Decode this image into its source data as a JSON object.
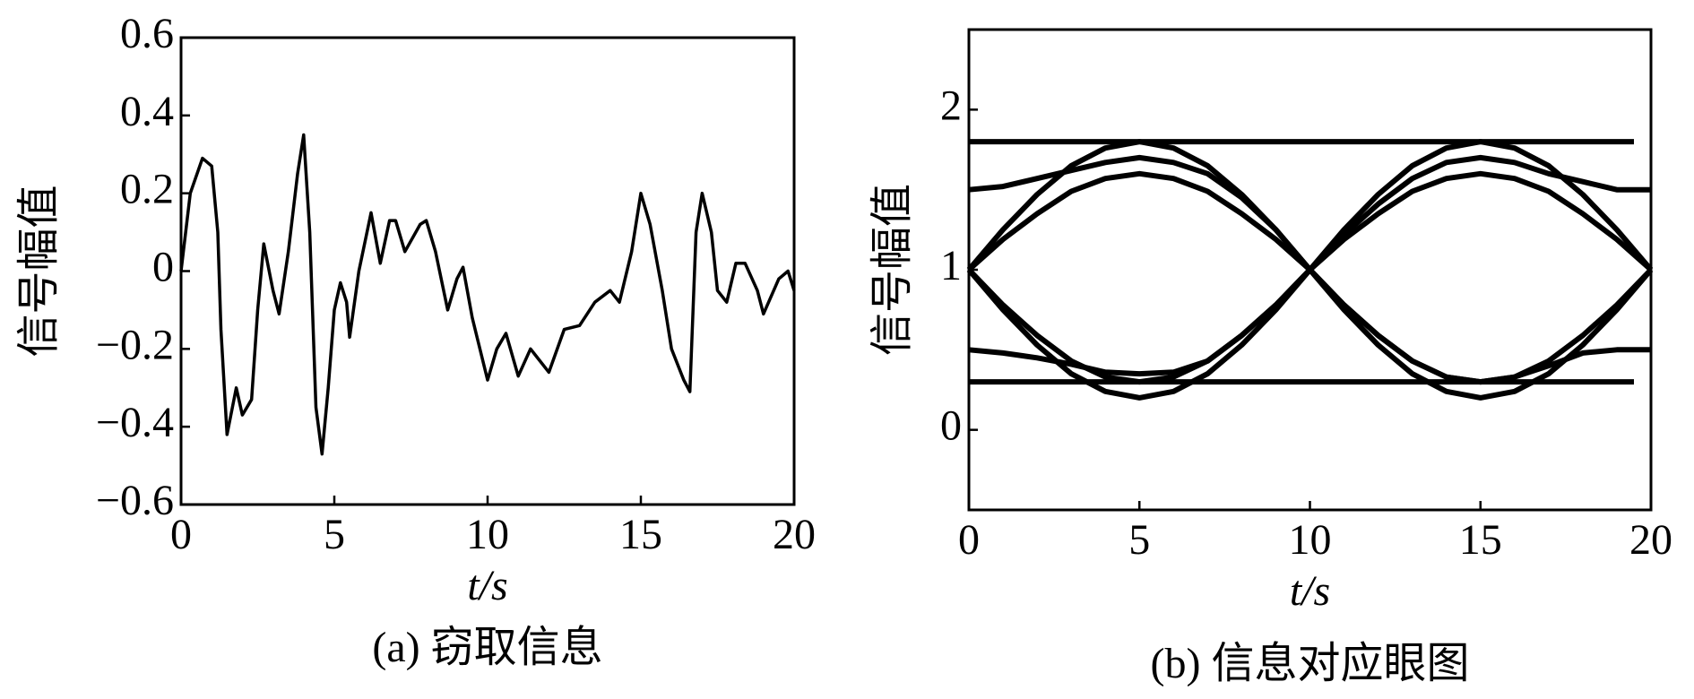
{
  "chart_data": [
    {
      "type": "line",
      "caption": "(a) 窃取信息",
      "xlabel": "t/s",
      "ylabel": "信号幅值",
      "xlim": [
        0,
        20
      ],
      "xticks": [
        0,
        5,
        10,
        15,
        20
      ],
      "ylim": [
        -0.6,
        0.6
      ],
      "yticks": [
        {
          "value": -0.6,
          "label": "−0.6"
        },
        {
          "value": -0.4,
          "label": "−0.4"
        },
        {
          "value": -0.2,
          "label": "−0.2"
        },
        0,
        0.2,
        0.4,
        0.6
      ],
      "series": [
        {
          "color": "#000000",
          "x": [
            0,
            0.3,
            0.7,
            1.0,
            1.2,
            1.3,
            1.5,
            1.8,
            2.0,
            2.3,
            2.5,
            2.7,
            3.0,
            3.2,
            3.5,
            3.8,
            4.0,
            4.2,
            4.4,
            4.6,
            4.8,
            5.0,
            5.2,
            5.4,
            5.5,
            5.8,
            6.2,
            6.5,
            6.8,
            7.0,
            7.3,
            7.8,
            8.0,
            8.3,
            8.7,
            9.0,
            9.2,
            9.5,
            10.0,
            10.3,
            10.6,
            11.0,
            11.4,
            11.6,
            12.0,
            12.5,
            13.0,
            13.5,
            14.0,
            14.3,
            14.7,
            15.0,
            15.3,
            15.7,
            16.0,
            16.4,
            16.6,
            16.8,
            17.0,
            17.3,
            17.5,
            17.8,
            18.1,
            18.4,
            18.8,
            19.0,
            19.5,
            19.8,
            20
          ],
          "values": [
            0,
            0.2,
            0.29,
            0.27,
            0.1,
            -0.15,
            -0.42,
            -0.3,
            -0.37,
            -0.33,
            -0.1,
            0.07,
            -0.05,
            -0.11,
            0.05,
            0.25,
            0.35,
            0.1,
            -0.35,
            -0.47,
            -0.3,
            -0.1,
            -0.03,
            -0.08,
            -0.17,
            0.0,
            0.15,
            0.02,
            0.13,
            0.13,
            0.05,
            0.12,
            0.13,
            0.05,
            -0.1,
            -0.02,
            0.01,
            -0.12,
            -0.28,
            -0.2,
            -0.16,
            -0.27,
            -0.2,
            -0.22,
            -0.26,
            -0.15,
            -0.14,
            -0.08,
            -0.05,
            -0.08,
            0.05,
            0.2,
            0.12,
            -0.05,
            -0.2,
            -0.28,
            -0.31,
            0.1,
            0.2,
            0.1,
            -0.05,
            -0.08,
            0.02,
            0.02,
            -0.05,
            -0.11,
            -0.02,
            0.0,
            -0.05
          ]
        }
      ]
    },
    {
      "type": "line",
      "caption": "(b) 信息对应眼图",
      "xlabel": "t/s",
      "ylabel": "信号幅值",
      "xlim": [
        0,
        20
      ],
      "xticks": [
        0,
        5,
        10,
        15,
        20
      ],
      "ylim": [
        -0.5,
        2.5
      ],
      "yticks": [
        0,
        1,
        2
      ],
      "series": [
        {
          "color": "#000000",
          "x": [
            0,
            1,
            2,
            3,
            4,
            5,
            6,
            7,
            8,
            9,
            10,
            11,
            12,
            13,
            14,
            15,
            16,
            17,
            18,
            19,
            20
          ],
          "values": [
            1,
            1.25,
            1.47,
            1.65,
            1.76,
            1.8,
            1.76,
            1.65,
            1.47,
            1.25,
            1,
            0.75,
            0.53,
            0.35,
            0.24,
            0.2,
            0.24,
            0.35,
            0.53,
            0.75,
            1
          ]
        },
        {
          "color": "#000000",
          "x": [
            0,
            1,
            2,
            3,
            4,
            5,
            6,
            7,
            8,
            9,
            10,
            11,
            12,
            13,
            14,
            15,
            16,
            17,
            18,
            19,
            20
          ],
          "values": [
            1,
            0.75,
            0.53,
            0.35,
            0.24,
            0.2,
            0.24,
            0.35,
            0.53,
            0.75,
            1,
            1.25,
            1.47,
            1.65,
            1.76,
            1.8,
            1.76,
            1.65,
            1.47,
            1.25,
            1
          ]
        },
        {
          "color": "#000000",
          "x": [
            0,
            1,
            2,
            3,
            4,
            5,
            6,
            7,
            8,
            9,
            10,
            11,
            12,
            13,
            14,
            15,
            16,
            17,
            18,
            19,
            20
          ],
          "values": [
            1,
            1.19,
            1.35,
            1.49,
            1.57,
            1.6,
            1.57,
            1.49,
            1.35,
            1.19,
            1,
            1.19,
            1.35,
            1.49,
            1.57,
            1.6,
            1.57,
            1.49,
            1.35,
            1.19,
            1
          ]
        },
        {
          "color": "#000000",
          "x": [
            0,
            1,
            2,
            3,
            4,
            5,
            6,
            7,
            8,
            9,
            10,
            11,
            12,
            13,
            14,
            15,
            16,
            17,
            18,
            19,
            20
          ],
          "values": [
            1,
            0.78,
            0.59,
            0.43,
            0.33,
            0.3,
            0.33,
            0.43,
            0.59,
            0.78,
            1,
            0.78,
            0.59,
            0.43,
            0.33,
            0.3,
            0.33,
            0.43,
            0.59,
            0.78,
            1
          ]
        },
        {
          "color": "#000000",
          "x": [
            0,
            1,
            2,
            3,
            4,
            5,
            6,
            7,
            8,
            9,
            10,
            11,
            12,
            13,
            14,
            15,
            16,
            17,
            18,
            19,
            20
          ],
          "values": [
            1.5,
            1.52,
            1.57,
            1.62,
            1.67,
            1.7,
            1.67,
            1.6,
            1.45,
            1.25,
            1,
            0.78,
            0.59,
            0.43,
            0.33,
            0.3,
            0.33,
            0.4,
            0.48,
            0.5,
            0.5
          ]
        },
        {
          "color": "#000000",
          "x": [
            0,
            1,
            2,
            3,
            4,
            5,
            6,
            7,
            8,
            9,
            10,
            11,
            12,
            13,
            14,
            15,
            16,
            17,
            18,
            19,
            20
          ],
          "values": [
            0.5,
            0.48,
            0.45,
            0.41,
            0.36,
            0.35,
            0.36,
            0.43,
            0.59,
            0.78,
            1,
            1.22,
            1.41,
            1.57,
            1.67,
            1.7,
            1.67,
            1.6,
            1.55,
            1.5,
            1.5
          ]
        },
        {
          "color": "#000000",
          "x": [
            0,
            19.5
          ],
          "values": [
            1.8,
            1.8
          ]
        },
        {
          "color": "#000000",
          "x": [
            0,
            19.5
          ],
          "values": [
            0.3,
            0.3
          ]
        }
      ]
    }
  ]
}
